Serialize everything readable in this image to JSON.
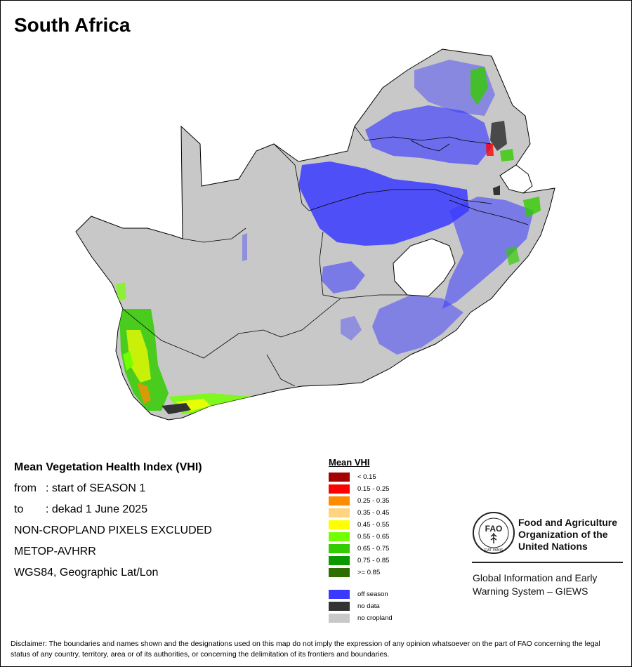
{
  "title": "South Africa",
  "info": {
    "heading": "Mean Vegetation Health Index (VHI)",
    "from_label": "from",
    "from_value": ": start of SEASON 1",
    "to_label": "to",
    "to_value": ": dekad 1 June 2025",
    "line3": "NON-CROPLAND PIXELS EXCLUDED",
    "line4": "METOP-AVHRR",
    "line5": "WGS84, Geographic Lat/Lon"
  },
  "legend": {
    "title": "Mean VHI",
    "classes": [
      {
        "label": "< 0.15",
        "color": "#a50000"
      },
      {
        "label": "0.15 - 0.25",
        "color": "#ff0000"
      },
      {
        "label": "0.25 - 0.35",
        "color": "#ff8c00"
      },
      {
        "label": "0.35 - 0.45",
        "color": "#ffd37f"
      },
      {
        "label": "0.45 - 0.55",
        "color": "#ffff00"
      },
      {
        "label": "0.55 - 0.65",
        "color": "#73ff00"
      },
      {
        "label": "0.65 - 0.75",
        "color": "#33cc00"
      },
      {
        "label": "0.75 - 0.85",
        "color": "#0a9a00"
      },
      {
        "label": ">= 0.85",
        "color": "#2e6e00"
      }
    ],
    "special": [
      {
        "label": "off season",
        "color": "#3a3aff"
      },
      {
        "label": "no data",
        "color": "#333333"
      },
      {
        "label": "no cropland",
        "color": "#c8c8c8"
      }
    ]
  },
  "org": {
    "name_line1": "Food and Agriculture",
    "name_line2": "Organization of the",
    "name_line3": "United Nations",
    "logo_text": "FAO",
    "logo_motto": "FIAT PANIS",
    "system_line1": "Global Information and Early",
    "system_line2": "Warning System – GIEWS"
  },
  "disclaimer": "Disclaimer: The boundaries and names shown and the designations used on this map do not imply the expression of any opinion whatsoever on the part of FAO concerning the legal status of any country, territory, area or of its authorities, or concerning the delimitation of its frontiers and boundaries.",
  "colors": {
    "land": "#c8c8c8",
    "border": "#000000",
    "off_season": "#3a3aff",
    "no_data": "#333333"
  }
}
